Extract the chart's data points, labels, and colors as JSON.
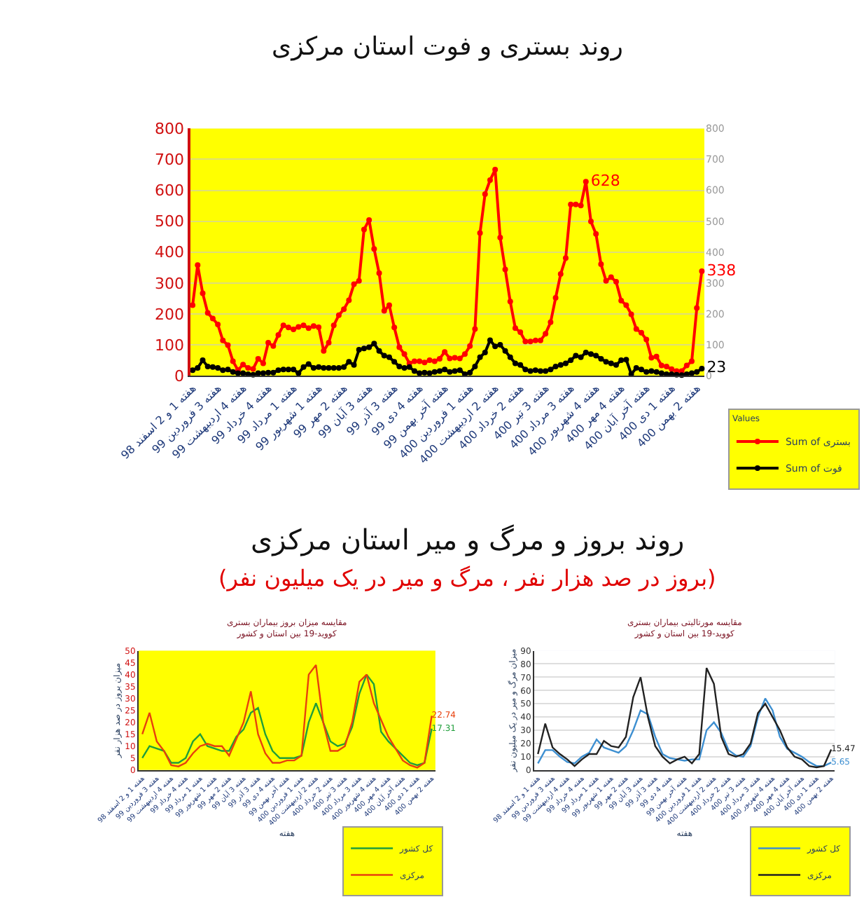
{
  "chart_data": [
    {
      "type": "line",
      "title": "روند بستری و فوت استان مرکزی",
      "legend_title": "Values",
      "legend": "bottom right",
      "grid": "y",
      "marker": "circle",
      "categories": [
        "هفته 1 و 2 اسفند 98",
        null,
        null,
        null,
        null,
        "هفته 3 فروردین 99",
        null,
        null,
        null,
        null,
        "هفته 4 اردیبهشت 99",
        null,
        null,
        null,
        null,
        "هفته 4 خرداد 99",
        null,
        null,
        null,
        null,
        "هفته 1 مرداد 99",
        null,
        null,
        null,
        null,
        "هفته 1 شهریور 99",
        null,
        null,
        null,
        null,
        "هفته 2 مهر 99",
        null,
        null,
        null,
        null,
        "هفته 3 آبان 99",
        null,
        null,
        null,
        null,
        "هفته 3 آذر 99",
        null,
        null,
        null,
        null,
        "هفته 4 دی 99",
        null,
        null,
        null,
        null,
        "هفته آخر بهمن 99",
        null,
        null,
        null,
        null,
        "هفته 1 فروردین 400",
        null,
        null,
        null,
        null,
        "هفته 2 اردیبهشت 400",
        null,
        null,
        null,
        null,
        "هفته 2 خرداد 400",
        null,
        null,
        null,
        null,
        "هفته 3 تیر 400",
        null,
        null,
        null,
        null,
        "هفته 3 مرداد 400",
        null,
        null,
        null,
        null,
        "هفته 4 شهریور 400",
        null,
        null,
        null,
        null,
        "هفته 4 مهر 400",
        null,
        null,
        null,
        null,
        "هفته آخر آبان 400",
        null,
        null,
        null,
        null,
        "هفته 1 دی 400",
        null,
        null,
        null,
        null,
        "هفته 2 بهمن 400",
        null
      ],
      "series": [
        {
          "name": "Sum of بستری",
          "color": "#ff0000",
          "values": [
            228,
            358,
            267,
            203,
            185,
            166,
            114,
            99,
            47,
            18,
            36,
            25,
            22,
            55,
            40,
            107,
            96,
            132,
            163,
            156,
            150,
            158,
            163,
            154,
            161,
            157,
            80,
            107,
            163,
            196,
            215,
            244,
            296,
            307,
            473,
            504,
            410,
            332,
            210,
            228,
            156,
            92,
            70,
            40,
            47,
            47,
            43,
            50,
            47,
            55,
            77,
            56,
            58,
            56,
            70,
            96,
            151,
            462,
            588,
            633,
            667,
            447,
            344,
            240,
            154,
            141,
            111,
            111,
            114,
            114,
            136,
            173,
            252,
            329,
            381,
            554,
            554,
            551,
            628,
            499,
            459,
            361,
            307,
            319,
            304,
            243,
            228,
            199,
            151,
            139,
            117,
            58,
            62,
            33,
            30,
            21,
            15,
            15,
            33,
            47,
            219,
            338
          ],
          "value_labels": [
            null,
            null,
            null,
            null,
            null,
            null,
            null,
            null,
            null,
            null,
            null,
            null,
            null,
            null,
            null,
            null,
            null,
            null,
            null,
            null,
            null,
            null,
            null,
            null,
            null,
            null,
            null,
            null,
            null,
            null,
            null,
            null,
            null,
            null,
            null,
            null,
            null,
            null,
            null,
            null,
            null,
            null,
            null,
            null,
            null,
            null,
            null,
            null,
            null,
            null,
            null,
            null,
            null,
            null,
            null,
            null,
            null,
            null,
            null,
            null,
            null,
            null,
            null,
            null,
            null,
            null,
            null,
            null,
            null,
            null,
            null,
            null,
            null,
            null,
            null,
            null,
            null,
            null,
            "628",
            null,
            null,
            null,
            null,
            null,
            null,
            null,
            null,
            null,
            null,
            null,
            null,
            null,
            null,
            null,
            null,
            null,
            null,
            null,
            null,
            null,
            null,
            "338"
          ]
        },
        {
          "name": "Sum of فوت",
          "color": "#000000",
          "axis": "y2",
          "values": [
            18,
            25,
            50,
            30,
            28,
            25,
            18,
            20,
            12,
            8,
            8,
            5,
            3,
            8,
            8,
            10,
            10,
            18,
            20,
            20,
            20,
            8,
            28,
            38,
            25,
            28,
            25,
            25,
            25,
            25,
            28,
            45,
            35,
            84,
            88,
            92,
            104,
            80,
            65,
            60,
            45,
            30,
            25,
            28,
            15,
            8,
            10,
            8,
            12,
            15,
            20,
            12,
            15,
            18,
            5,
            10,
            30,
            60,
            75,
            115,
            95,
            100,
            80,
            60,
            40,
            35,
            20,
            15,
            18,
            15,
            15,
            20,
            30,
            35,
            40,
            50,
            65,
            60,
            75,
            70,
            65,
            55,
            45,
            40,
            35,
            50,
            52,
            5,
            25,
            20,
            12,
            15,
            12,
            8,
            5,
            5,
            3,
            2,
            5,
            8,
            12,
            23
          ],
          "value_labels": [
            null,
            null,
            null,
            null,
            null,
            null,
            null,
            null,
            null,
            null,
            null,
            null,
            null,
            null,
            null,
            null,
            null,
            null,
            null,
            null,
            null,
            null,
            null,
            null,
            null,
            null,
            null,
            null,
            null,
            null,
            null,
            null,
            null,
            null,
            null,
            null,
            null,
            null,
            null,
            null,
            null,
            null,
            null,
            null,
            null,
            null,
            null,
            null,
            null,
            null,
            null,
            null,
            null,
            null,
            null,
            null,
            null,
            null,
            null,
            null,
            null,
            null,
            null,
            null,
            null,
            null,
            null,
            null,
            null,
            null,
            null,
            null,
            null,
            null,
            null,
            null,
            null,
            null,
            null,
            null,
            null,
            null,
            null,
            null,
            null,
            null,
            null,
            null,
            null,
            null,
            null,
            null,
            null,
            null,
            null,
            null,
            null,
            null,
            null,
            null,
            null,
            "23"
          ]
        }
      ],
      "ylim": [
        0,
        800
      ],
      "yticks": [
        0,
        100,
        200,
        300,
        400,
        500,
        600,
        700,
        800
      ],
      "y2lim": [
        0,
        800
      ],
      "y2ticks": [
        0,
        100,
        200,
        300,
        400,
        500,
        600,
        700,
        800
      ]
    },
    {
      "type": "other",
      "title": "روند بروز و مرگ و میر استان مرکزی",
      "subtitle": "(بروز در صد هزار نفر ، مرگ و میر در یک میلیون نفر)"
    },
    {
      "type": "line",
      "title": "مقایسه میزان بروز بیماران بستری کووید-19 بین استان و کشور",
      "xlabel": "هفته",
      "ylabel": "میزان بروز در صد هزار نفر",
      "legend": "bottom right",
      "categories": [
        "هفته 1 و 2 اسفند 98",
        null,
        "هفته 3 فروردین 99",
        null,
        "هفته 4 اردیبهشت 99",
        null,
        "هفته 4 خرداد 99",
        null,
        "هفته 1 مرداد 99",
        null,
        "هفته 1 شهریور 99",
        null,
        "هفته 2 مهر 99",
        null,
        "هفته 3 آبان 99",
        null,
        "هفته 3 آذر 99",
        null,
        "هفته 4 دی 99",
        null,
        "هفته آخر بهمن 99",
        null,
        "هفته 1 فروردین 400",
        null,
        "هفته 2 اردیبهشت 400",
        null,
        "هفته 2 خرداد 400",
        null,
        "هفته 3 تیر 400",
        null,
        "هفته 3 مرداد 400",
        null,
        "هفته 4 شهریور 400",
        null,
        "هفته 4 مهر 400",
        null,
        "هفته آخر آبان 400",
        null,
        "هفته 1 دی 400",
        null,
        "هفته 2 بهمن 400"
      ],
      "series": [
        {
          "name": "کل کشور",
          "color": "#1f9e3a",
          "values": [
            5,
            10,
            9,
            8,
            3,
            3,
            5,
            12,
            15,
            10,
            9,
            8,
            8,
            14,
            17,
            24,
            26,
            15,
            8,
            5,
            5,
            5,
            6,
            20,
            28,
            20,
            12,
            10,
            11,
            18,
            32,
            40,
            36,
            16,
            12,
            9,
            6,
            3,
            2,
            3,
            17.31
          ],
          "value_labels": [
            null,
            null,
            null,
            null,
            null,
            null,
            null,
            null,
            null,
            null,
            null,
            null,
            null,
            null,
            null,
            null,
            null,
            null,
            null,
            null,
            null,
            null,
            null,
            null,
            null,
            null,
            null,
            null,
            null,
            null,
            null,
            null,
            null,
            null,
            null,
            null,
            null,
            null,
            null,
            null,
            "17.31"
          ]
        },
        {
          "name": "مرکزی",
          "color": "#e8400c",
          "values": [
            15,
            24,
            12,
            8,
            2,
            1.5,
            3,
            7,
            10,
            11,
            10,
            10,
            6,
            13,
            20,
            33,
            15,
            7,
            3,
            3,
            4,
            4,
            6,
            40,
            44,
            20,
            8,
            8,
            10,
            20,
            37,
            40,
            28,
            21,
            14,
            9,
            4,
            2,
            1,
            3,
            22.74
          ],
          "value_labels": [
            null,
            null,
            null,
            null,
            null,
            null,
            null,
            null,
            null,
            null,
            null,
            null,
            null,
            null,
            null,
            null,
            null,
            null,
            null,
            null,
            null,
            null,
            null,
            null,
            null,
            null,
            null,
            null,
            null,
            null,
            null,
            null,
            null,
            null,
            null,
            null,
            null,
            null,
            null,
            null,
            "22.74"
          ]
        }
      ],
      "ylim": [
        0,
        50
      ],
      "yticks": [
        0,
        5,
        10,
        15,
        20,
        25,
        30,
        35,
        40,
        45,
        50
      ]
    },
    {
      "type": "line",
      "title": "مقایسه مورتالیتی بیماران بستری کووید-19 بین استان و کشور",
      "xlabel": "هفته",
      "ylabel": "میزان مرگ و میر در یک میلیون نفر",
      "legend": "bottom right",
      "grid": "y",
      "categories": [
        "هفته 1 و 2 اسفند 98",
        null,
        "هفته 3 فروردین 99",
        null,
        "هفته 4 اردیبهشت 99",
        null,
        "هفته 4 خرداد 99",
        null,
        "هفته 1 مرداد 99",
        null,
        "هفته 1 شهریور 99",
        null,
        "هفته 2 مهر 99",
        null,
        "هفته 3 آبان 99",
        null,
        "هفته 3 آذر 99",
        null,
        "هفته 4 دی 99",
        null,
        "هفته آخر بهمن 99",
        null,
        "هفته 1 فروردین 400",
        null,
        "هفته 2 اردیبهشت 400",
        null,
        "هفته 2 خرداد 400",
        null,
        "هفته 3 تیر 400",
        null,
        "هفته 3 مرداد 400",
        null,
        "هفته 4 شهریور 400",
        null,
        "هفته 4 مهر 400",
        null,
        "هفته آخر آبان 400",
        null,
        "هفته 1 دی 400",
        null,
        "هفته 2 بهمن 400"
      ],
      "series": [
        {
          "name": "کل کشور",
          "color": "#3d8fd1",
          "values": [
            5,
            15,
            15,
            10,
            6,
            5,
            10,
            13,
            23,
            17,
            15,
            13,
            18,
            30,
            45,
            42,
            25,
            12,
            9,
            8,
            7,
            8,
            8,
            30,
            36,
            28,
            15,
            11,
            10,
            18,
            40,
            54,
            45,
            25,
            16,
            13,
            10,
            6,
            3,
            3,
            5.65
          ],
          "value_labels": [
            null,
            null,
            null,
            null,
            null,
            null,
            null,
            null,
            null,
            null,
            null,
            null,
            null,
            null,
            null,
            null,
            null,
            null,
            null,
            null,
            null,
            null,
            null,
            null,
            null,
            null,
            null,
            null,
            null,
            null,
            null,
            null,
            null,
            null,
            null,
            null,
            null,
            null,
            null,
            null,
            "5.65"
          ]
        },
        {
          "name": "مرکزی",
          "color": "#222222",
          "values": [
            12,
            35,
            17,
            12,
            8,
            3,
            8,
            12,
            12,
            22,
            18,
            17,
            25,
            55,
            70,
            40,
            18,
            10,
            5,
            8,
            10,
            5,
            12,
            77,
            65,
            25,
            12,
            10,
            12,
            20,
            43,
            50,
            40,
            30,
            17,
            10,
            8,
            3,
            2,
            3,
            15.47
          ],
          "value_labels": [
            null,
            null,
            null,
            null,
            null,
            null,
            null,
            null,
            null,
            null,
            null,
            null,
            null,
            null,
            null,
            null,
            null,
            null,
            null,
            null,
            null,
            null,
            null,
            null,
            null,
            null,
            null,
            null,
            null,
            null,
            null,
            null,
            null,
            null,
            null,
            null,
            null,
            null,
            null,
            null,
            "15.47"
          ]
        }
      ],
      "ylim": [
        0,
        90
      ],
      "yticks": [
        0,
        10,
        20,
        30,
        40,
        50,
        60,
        70,
        80,
        90
      ]
    }
  ]
}
